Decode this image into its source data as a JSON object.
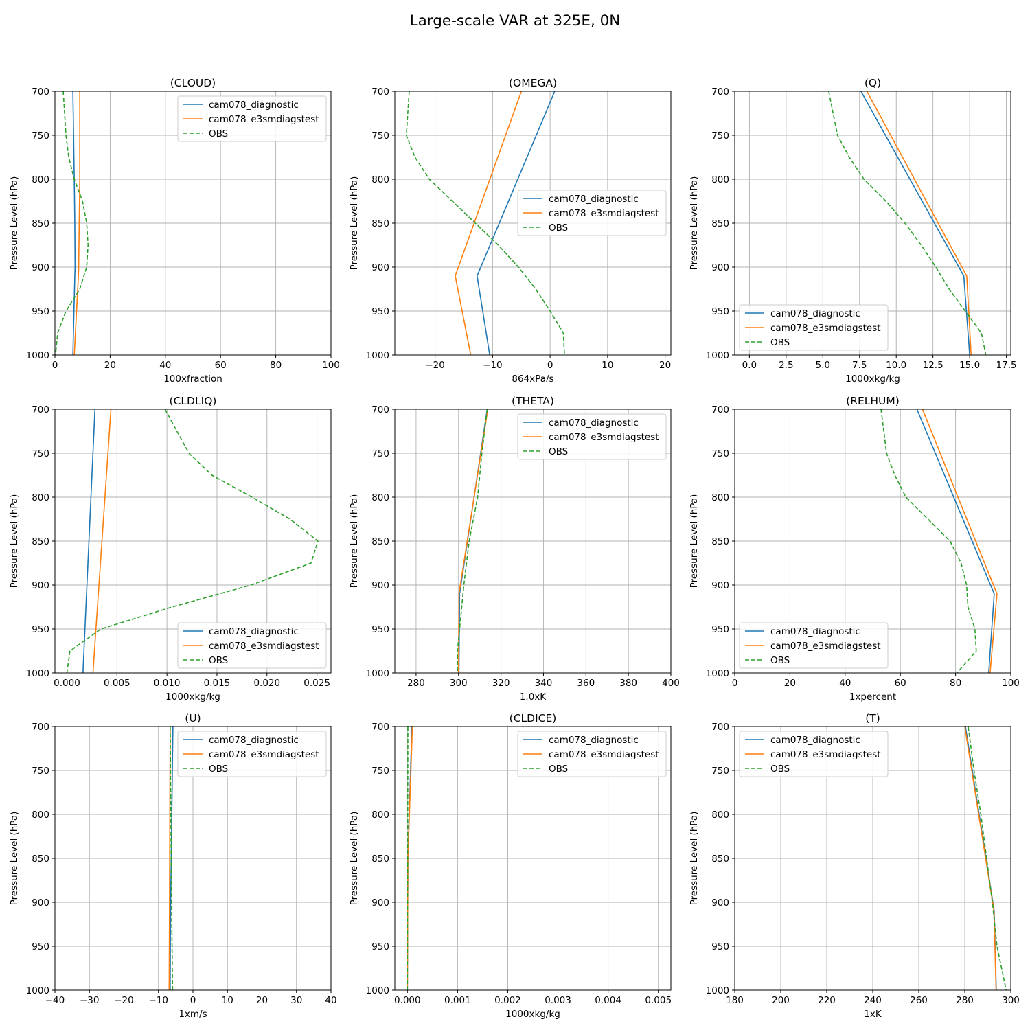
{
  "figure_title": "Large-scale VAR at 325E, 0N",
  "legend_labels": [
    "cam078_diagnostic",
    "cam078_e3smdiagstest",
    "OBS"
  ],
  "colors": {
    "diag": "#1f77b4",
    "test": "#ff7f0e",
    "obs": "#2ca02c",
    "grid": "#b0b0b0",
    "axis": "#000000"
  },
  "chart_data": [
    {
      "type": "line",
      "title": "(CLOUD)",
      "xlabel": "100xfraction",
      "ylabel": "Pressure Level (hPa)",
      "xlim": [
        0,
        100
      ],
      "xticks": [
        0,
        20,
        40,
        60,
        80,
        100
      ],
      "xtick_labels": [
        "0",
        "20",
        "40",
        "60",
        "80",
        "100"
      ],
      "ylim": [
        1000,
        700
      ],
      "yticks": [
        700,
        750,
        800,
        850,
        900,
        950,
        1000
      ],
      "grid": true,
      "legend_loc": "upper-right",
      "series": [
        {
          "name": "cam078_diagnostic",
          "style": "solid",
          "points": [
            [
              6.5,
              700
            ],
            [
              7,
              800
            ],
            [
              7.2,
              850
            ],
            [
              7.3,
              900
            ],
            [
              7.2,
              910
            ],
            [
              6.5,
              1000
            ]
          ]
        },
        {
          "name": "cam078_e3smdiagstest",
          "style": "solid",
          "points": [
            [
              9,
              700
            ],
            [
              9,
              800
            ],
            [
              8.8,
              850
            ],
            [
              8.6,
              900
            ],
            [
              8.5,
              910
            ],
            [
              7,
              1000
            ]
          ]
        },
        {
          "name": "OBS",
          "style": "dashed",
          "points": [
            [
              3,
              700
            ],
            [
              4,
              750
            ],
            [
              5,
              775
            ],
            [
              7,
              800
            ],
            [
              10,
              825
            ],
            [
              11.5,
              850
            ],
            [
              12,
              875
            ],
            [
              11.5,
              900
            ],
            [
              9,
              925
            ],
            [
              4,
              950
            ],
            [
              1,
              975
            ],
            [
              0.2,
              1000
            ]
          ]
        }
      ]
    },
    {
      "type": "line",
      "title": "(OMEGA)",
      "xlabel": "864xPa/s",
      "ylabel": "Pressure Level (hPa)",
      "xlim": [
        -27,
        21
      ],
      "xticks": [
        -20,
        -10,
        0,
        10,
        20
      ],
      "xtick_labels": [
        "−20",
        "−10",
        "0",
        "10",
        "20"
      ],
      "ylim": [
        1000,
        700
      ],
      "yticks": [
        700,
        750,
        800,
        850,
        900,
        950,
        1000
      ],
      "grid": true,
      "legend_loc": "center-right",
      "series": [
        {
          "name": "cam078_diagnostic",
          "style": "solid",
          "points": [
            [
              0.8,
              700
            ],
            [
              -12.7,
              910
            ],
            [
              -10.5,
              1000
            ]
          ]
        },
        {
          "name": "cam078_e3smdiagstest",
          "style": "solid",
          "points": [
            [
              -5,
              700
            ],
            [
              -16.5,
              910
            ],
            [
              -13.8,
              1000
            ]
          ]
        },
        {
          "name": "OBS",
          "style": "dashed",
          "points": [
            [
              -24.5,
              700
            ],
            [
              -25,
              750
            ],
            [
              -23.5,
              775
            ],
            [
              -21,
              800
            ],
            [
              -17,
              825
            ],
            [
              -13,
              850
            ],
            [
              -9,
              875
            ],
            [
              -5.5,
              900
            ],
            [
              -2.5,
              925
            ],
            [
              0,
              950
            ],
            [
              2.3,
              975
            ],
            [
              2.5,
              1000
            ]
          ]
        }
      ]
    },
    {
      "type": "line",
      "title": "(Q)",
      "xlabel": "1000xkg/kg",
      "ylabel": "Pressure Level (hPa)",
      "xlim": [
        -1,
        17.8
      ],
      "xticks": [
        0,
        2.5,
        5,
        7.5,
        10,
        12.5,
        15,
        17.5
      ],
      "xtick_labels": [
        "0.0",
        "2.5",
        "5.0",
        "7.5",
        "10.0",
        "12.5",
        "15.0",
        "17.5"
      ],
      "ylim": [
        1000,
        700
      ],
      "yticks": [
        700,
        750,
        800,
        850,
        900,
        950,
        1000
      ],
      "grid": true,
      "legend_loc": "lower-left",
      "series": [
        {
          "name": "cam078_diagnostic",
          "style": "solid",
          "points": [
            [
              7.6,
              700
            ],
            [
              14.6,
              910
            ],
            [
              15,
              1000
            ]
          ]
        },
        {
          "name": "cam078_e3smdiagstest",
          "style": "solid",
          "points": [
            [
              8.0,
              700
            ],
            [
              14.8,
              910
            ],
            [
              15.1,
              1000
            ]
          ]
        },
        {
          "name": "OBS",
          "style": "dashed",
          "points": [
            [
              5.4,
              700
            ],
            [
              6.0,
              750
            ],
            [
              6.8,
              775
            ],
            [
              7.8,
              800
            ],
            [
              9.3,
              825
            ],
            [
              10.6,
              850
            ],
            [
              11.7,
              875
            ],
            [
              12.7,
              900
            ],
            [
              13.6,
              925
            ],
            [
              14.7,
              950
            ],
            [
              15.8,
              975
            ],
            [
              16.1,
              1000
            ]
          ]
        }
      ]
    },
    {
      "type": "line",
      "title": "(CLDLIQ)",
      "xlabel": "1000xkg/kg",
      "ylabel": "Pressure Level (hPa)",
      "xlim": [
        -0.0012,
        0.0264
      ],
      "xticks": [
        0,
        0.005,
        0.01,
        0.015,
        0.02,
        0.025
      ],
      "xtick_labels": [
        "0.000",
        "0.005",
        "0.010",
        "0.015",
        "0.020",
        "0.025"
      ],
      "ylim": [
        1000,
        700
      ],
      "yticks": [
        700,
        750,
        800,
        850,
        900,
        950,
        1000
      ],
      "grid": true,
      "legend_loc": "lower-right",
      "series": [
        {
          "name": "cam078_diagnostic",
          "style": "solid",
          "points": [
            [
              0.0028,
              700
            ],
            [
              0.0016,
              1000
            ]
          ]
        },
        {
          "name": "cam078_e3smdiagstest",
          "style": "solid",
          "points": [
            [
              0.0044,
              700
            ],
            [
              0.0026,
              1000
            ]
          ]
        },
        {
          "name": "OBS",
          "style": "dashed",
          "points": [
            [
              0.0098,
              700
            ],
            [
              0.0122,
              750
            ],
            [
              0.0145,
              775
            ],
            [
              0.0185,
              800
            ],
            [
              0.0223,
              825
            ],
            [
              0.0251,
              850
            ],
            [
              0.0244,
              875
            ],
            [
              0.0184,
              900
            ],
            [
              0.0105,
              925
            ],
            [
              0.0034,
              950
            ],
            [
              0.0003,
              975
            ],
            [
              0.0,
              1000
            ]
          ]
        }
      ]
    },
    {
      "type": "line",
      "title": "(THETA)",
      "xlabel": "1.0xK",
      "ylabel": "Pressure Level (hPa)",
      "xlim": [
        270,
        400
      ],
      "xticks": [
        280,
        300,
        320,
        340,
        360,
        380,
        400
      ],
      "xtick_labels": [
        "280",
        "300",
        "320",
        "340",
        "360",
        "380",
        "400"
      ],
      "ylim": [
        1000,
        700
      ],
      "yticks": [
        700,
        750,
        800,
        850,
        900,
        950,
        1000
      ],
      "grid": true,
      "legend_loc": "upper-right",
      "series": [
        {
          "name": "cam078_diagnostic",
          "style": "solid",
          "points": [
            [
              313.5,
              700
            ],
            [
              300.5,
              910
            ],
            [
              300.2,
              1000
            ]
          ]
        },
        {
          "name": "cam078_e3smdiagstest",
          "style": "solid",
          "points": [
            [
              313.8,
              700
            ],
            [
              300.2,
              910
            ],
            [
              300.0,
              1000
            ]
          ]
        },
        {
          "name": "OBS",
          "style": "dashed",
          "points": [
            [
              313.5,
              700
            ],
            [
              311,
              750
            ],
            [
              309,
              800
            ],
            [
              305,
              850
            ],
            [
              302.5,
              900
            ],
            [
              300.5,
              950
            ],
            [
              299.5,
              975
            ],
            [
              299.5,
              1000
            ]
          ]
        }
      ]
    },
    {
      "type": "line",
      "title": "(RELHUM)",
      "xlabel": "1xpercent",
      "ylabel": "Pressure Level (hPa)",
      "xlim": [
        0,
        100
      ],
      "xticks": [
        0,
        20,
        40,
        60,
        80,
        100
      ],
      "xtick_labels": [
        "0",
        "20",
        "40",
        "60",
        "80",
        "100"
      ],
      "ylim": [
        1000,
        700
      ],
      "yticks": [
        700,
        750,
        800,
        850,
        900,
        950,
        1000
      ],
      "grid": true,
      "legend_loc": "lower-left",
      "series": [
        {
          "name": "cam078_diagnostic",
          "style": "solid",
          "points": [
            [
              66,
              700
            ],
            [
              94,
              910
            ],
            [
              92,
              1000
            ]
          ]
        },
        {
          "name": "cam078_e3smdiagstest",
          "style": "solid",
          "points": [
            [
              68,
              700
            ],
            [
              95,
              910
            ],
            [
              92.5,
              1000
            ]
          ]
        },
        {
          "name": "OBS",
          "style": "dashed",
          "points": [
            [
              53,
              700
            ],
            [
              55,
              750
            ],
            [
              58,
              775
            ],
            [
              62,
              800
            ],
            [
              70,
              825
            ],
            [
              78,
              850
            ],
            [
              82,
              875
            ],
            [
              84,
              900
            ],
            [
              84.5,
              925
            ],
            [
              87,
              950
            ],
            [
              87.5,
              975
            ],
            [
              80.5,
              1000
            ]
          ]
        }
      ]
    },
    {
      "type": "line",
      "title": "(U)",
      "xlabel": "1xm/s",
      "ylabel": "Pressure Level (hPa)",
      "xlim": [
        -40,
        40
      ],
      "xticks": [
        -40,
        -30,
        -20,
        -10,
        0,
        10,
        20,
        30,
        40
      ],
      "xtick_labels": [
        "−40",
        "−30",
        "−20",
        "−10",
        "0",
        "10",
        "20",
        "30",
        "40"
      ],
      "ylim": [
        1000,
        700
      ],
      "yticks": [
        700,
        750,
        800,
        850,
        900,
        950,
        1000
      ],
      "grid": true,
      "legend_loc": "upper-right",
      "series": [
        {
          "name": "cam078_diagnostic",
          "style": "solid",
          "points": [
            [
              -5.8,
              700
            ],
            [
              -6.5,
              910
            ],
            [
              -6.6,
              1000
            ]
          ]
        },
        {
          "name": "cam078_e3smdiagstest",
          "style": "solid",
          "points": [
            [
              -6.6,
              700
            ],
            [
              -6.8,
              910
            ],
            [
              -6.9,
              1000
            ]
          ]
        },
        {
          "name": "OBS",
          "style": "dashed",
          "points": [
            [
              -6.6,
              700
            ],
            [
              -6.4,
              800
            ],
            [
              -6.2,
              900
            ],
            [
              -5.9,
              1000
            ]
          ]
        }
      ]
    },
    {
      "type": "line",
      "title": "(CLDICE)",
      "xlabel": "1000xkg/kg",
      "ylabel": "Pressure Level (hPa)",
      "xlim": [
        -0.00025,
        0.00525
      ],
      "xticks": [
        0,
        0.001,
        0.002,
        0.003,
        0.004,
        0.005
      ],
      "xtick_labels": [
        "0.000",
        "0.001",
        "0.002",
        "0.003",
        "0.004",
        "0.005"
      ],
      "ylim": [
        1000,
        700
      ],
      "yticks": [
        700,
        750,
        800,
        850,
        900,
        950,
        1000
      ],
      "grid": true,
      "legend_loc": "upper-right",
      "series": [
        {
          "name": "cam078_diagnostic",
          "style": "solid",
          "points": [
            [
              9e-05,
              700
            ],
            [
              1e-05,
              850
            ],
            [
              0.0,
              1000
            ]
          ]
        },
        {
          "name": "cam078_e3smdiagstest",
          "style": "solid",
          "points": [
            [
              0.0001,
              700
            ],
            [
              1e-05,
              850
            ],
            [
              0.0,
              1000
            ]
          ]
        },
        {
          "name": "OBS",
          "style": "dashed",
          "points": [
            [
              1e-05,
              700
            ],
            [
              0.0,
              1000
            ]
          ]
        }
      ]
    },
    {
      "type": "line",
      "title": "(T)",
      "xlabel": "1xK",
      "ylabel": "Pressure Level (hPa)",
      "xlim": [
        180,
        300
      ],
      "xticks": [
        180,
        200,
        220,
        240,
        260,
        280,
        300
      ],
      "xtick_labels": [
        "180",
        "200",
        "220",
        "240",
        "260",
        "280",
        "300"
      ],
      "ylim": [
        1000,
        700
      ],
      "yticks": [
        700,
        750,
        800,
        850,
        900,
        950,
        1000
      ],
      "grid": true,
      "legend_loc": "upper-left",
      "series": [
        {
          "name": "cam078_diagnostic",
          "style": "solid",
          "points": [
            [
              280.3,
              700
            ],
            [
              292.8,
              910
            ],
            [
              293.7,
              1000
            ]
          ]
        },
        {
          "name": "cam078_e3smdiagstest",
          "style": "solid",
          "points": [
            [
              280.0,
              700
            ],
            [
              292.7,
              910
            ],
            [
              293.6,
              1000
            ]
          ]
        },
        {
          "name": "OBS",
          "style": "dashed",
          "points": [
            [
              281.5,
              700
            ],
            [
              284,
              750
            ],
            [
              287,
              800
            ],
            [
              289.5,
              850
            ],
            [
              292,
              900
            ],
            [
              294,
              950
            ],
            [
              296,
              975
            ],
            [
              298,
              1000
            ]
          ]
        }
      ]
    }
  ]
}
